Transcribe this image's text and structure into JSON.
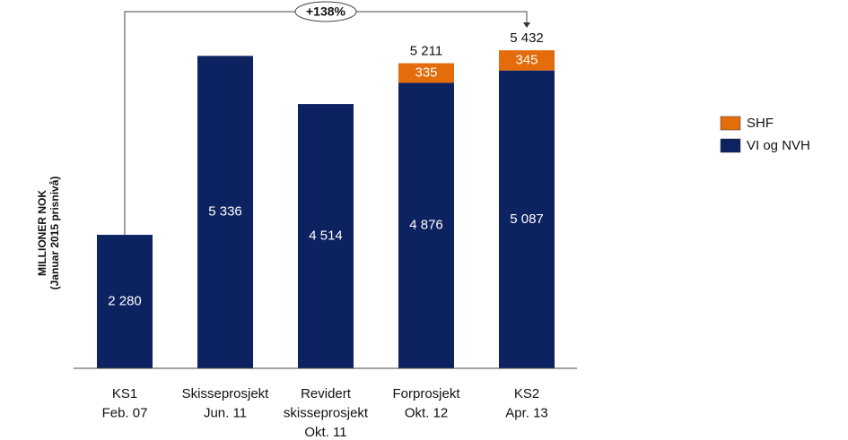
{
  "chart_data": {
    "type": "stacked-bar",
    "y_label": [
      "MILLIONER NOK",
      "(Januar 2015 prisnivå)"
    ],
    "annotation": "+138%",
    "categories": [
      [
        "KS1",
        "Feb. 07"
      ],
      [
        "Skisseprosjekt",
        "Jun. 11"
      ],
      [
        "Revidert",
        "skisseprosjekt",
        "Okt. 11"
      ],
      [
        "Forprosjekt",
        "Okt. 12"
      ],
      [
        "KS2",
        "Apr. 13"
      ]
    ],
    "series": [
      {
        "name": "VI og NVH",
        "color": "#0d2261",
        "values": [
          2280,
          5336,
          4514,
          4876,
          5087
        ],
        "value_labels": [
          "2 280",
          "5 336",
          "4 514",
          "4 876",
          "5 087"
        ]
      },
      {
        "name": "SHF",
        "color": "#e46c0a",
        "values": [
          null,
          null,
          null,
          335,
          345
        ],
        "value_labels": [
          null,
          null,
          null,
          "335",
          "345"
        ]
      }
    ],
    "totals": {
      "values": [
        null,
        null,
        null,
        5211,
        5432
      ],
      "value_labels": [
        null,
        null,
        null,
        "5 211",
        "5 432"
      ]
    },
    "ylim": [
      0,
      6000
    ]
  }
}
